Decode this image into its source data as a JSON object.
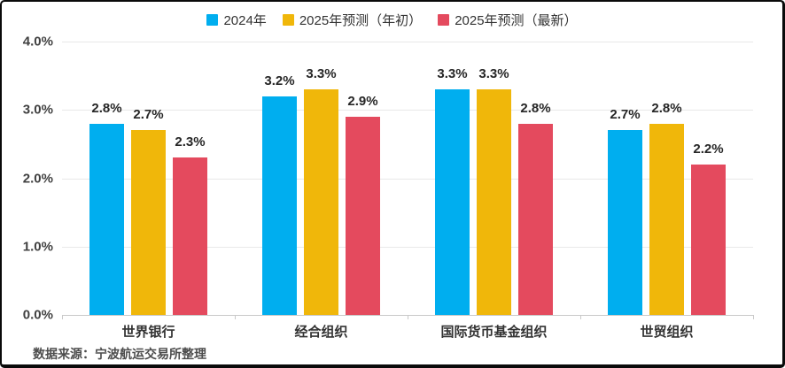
{
  "chart_data": {
    "type": "bar",
    "categories": [
      "世界银行",
      "经合组织",
      "国际货币基金组织",
      "世贸组织"
    ],
    "series": [
      {
        "name": "2024年",
        "color": "#00AEEF",
        "values": [
          2.8,
          3.2,
          3.3,
          2.7
        ]
      },
      {
        "name": "2025年预测（年初）",
        "color": "#F0B70A",
        "values": [
          2.7,
          3.3,
          3.3,
          2.8
        ]
      },
      {
        "name": "2025年预测（最新）",
        "color": "#E44A5E",
        "values": [
          2.3,
          2.9,
          2.8,
          2.2
        ]
      }
    ],
    "ylim": [
      0,
      4
    ],
    "yticks": [
      {
        "value": 4.0,
        "label": "4.0%"
      },
      {
        "value": 3.0,
        "label": "3.0%"
      },
      {
        "value": 2.0,
        "label": "2.0%"
      },
      {
        "value": 1.0,
        "label": "1.0%"
      },
      {
        "value": 0.0,
        "label": "0.0%"
      }
    ],
    "value_label_suffix": "%",
    "legend_position": "top",
    "grid": true,
    "title": "",
    "xlabel": "",
    "ylabel": ""
  },
  "footer": {
    "source_note": "数据来源：宁波航运交易所整理"
  }
}
